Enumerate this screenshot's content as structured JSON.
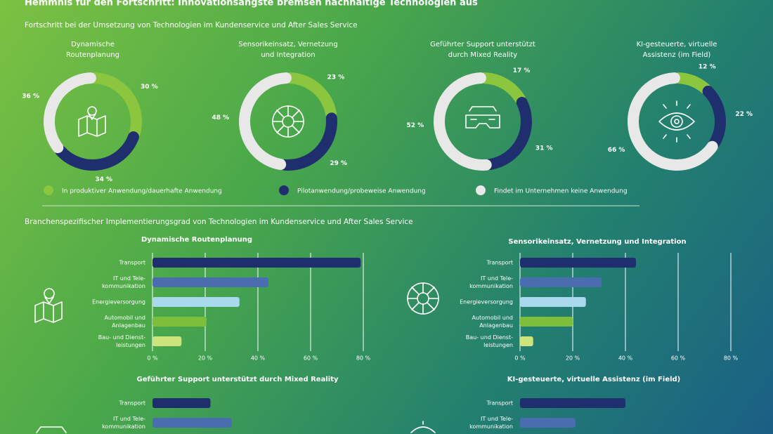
{
  "title": "Hemmnis für den Fortschritt: Innovationsängste bremsen nachhaltige Technologien aus",
  "section1_title": "Fortschritt bei der Umsetzung von Technologien im Kundenservice und After Sales Service",
  "legend": {
    "labels": [
      "In produktiver Anwendung/dauerhafte Anwendung",
      "Pilotanwendung/probeweise Anwendung",
      "Findet im Unternehmen keine Anwendung"
    ],
    "colors": [
      "#8cc63f",
      "#1f2f6e",
      "#e8e8e8"
    ]
  },
  "section2_title": "Branchenspezifischer Implementierungsgrad von Technologien im Kundenservice und After Sales Service",
  "chart_data": [
    {
      "type": "pie",
      "title": [
        "Dynamische",
        "Routenplanung"
      ],
      "values": [
        30,
        34,
        36
      ],
      "value_labels": [
        "30 %",
        "34 %",
        "36 %"
      ]
    },
    {
      "type": "pie",
      "title": [
        "Sensorikeinsatz, Vernetzung",
        "und Integration"
      ],
      "values": [
        23,
        29,
        48
      ],
      "value_labels": [
        "23 %",
        "29 %",
        "48 %"
      ]
    },
    {
      "type": "pie",
      "title": [
        "Geführter Support unterstützt",
        "durch Mixed Reality"
      ],
      "values": [
        17,
        31,
        52
      ],
      "value_labels": [
        "17 %",
        "31 %",
        "52 %"
      ]
    },
    {
      "type": "pie",
      "title": [
        "KI-gesteuerte, virtuelle",
        "Assistenz (im Field)"
      ],
      "values": [
        12,
        22,
        66
      ],
      "value_labels": [
        "12 %",
        "22 %",
        "66 %"
      ]
    },
    {
      "type": "bar",
      "orientation": "horizontal",
      "title": "Dynamische Routenplanung",
      "categories": [
        [
          "Transport"
        ],
        [
          "IT und Tele-",
          "kommunikation"
        ],
        [
          "Energieversorgung"
        ],
        [
          "Automobil und",
          "Anlagenbau"
        ],
        [
          "Bau- und Dienst-",
          "leistungen"
        ]
      ],
      "values": [
        79,
        44,
        33,
        20.5,
        11
      ],
      "colors": [
        "#1f2f6e",
        "#4a6db0",
        "#a9d9ec",
        "#7dbf3a",
        "#cde37c"
      ],
      "xlim": [
        0,
        80
      ],
      "xticks": [
        {
          "value": 0,
          "label": "0 %"
        },
        {
          "value": 20,
          "label": "20 %"
        },
        {
          "value": 40,
          "label": "40 %"
        },
        {
          "value": 60,
          "label": "60 %"
        },
        {
          "value": 80,
          "label": "80 %"
        }
      ],
      "grid": true
    },
    {
      "type": "bar",
      "orientation": "horizontal",
      "title": "Sensorikeinsatz, Vernetzung und Integration",
      "categories": [
        [
          "Transport"
        ],
        [
          "IT und Tele-",
          "kommunikation"
        ],
        [
          "Energieversorgung"
        ],
        [
          "Automobil und",
          "Anlagenbau"
        ],
        [
          "Bau- und Dienst-",
          "leistungen"
        ]
      ],
      "values": [
        44,
        31,
        25,
        20,
        5
      ],
      "colors": [
        "#1f2f6e",
        "#4a6db0",
        "#a9d9ec",
        "#7dbf3a",
        "#cde37c"
      ],
      "xlim": [
        0,
        80
      ],
      "xticks": [
        {
          "value": 0,
          "label": "0 %"
        },
        {
          "value": 20,
          "label": "20 %"
        },
        {
          "value": 40,
          "label": "40 %"
        },
        {
          "value": 60,
          "label": "60 %"
        },
        {
          "value": 80,
          "label": "80 %"
        }
      ],
      "grid": true
    },
    {
      "type": "bar",
      "orientation": "horizontal",
      "title": "Geführter Support unterstützt durch Mixed Reality",
      "categories": [
        [
          "Transport"
        ],
        [
          "IT und Tele-",
          "kommunikation"
        ]
      ],
      "values": [
        22,
        30
      ],
      "colors": [
        "#1f2f6e",
        "#4a6db0"
      ],
      "xlim": [
        0,
        80
      ]
    },
    {
      "type": "bar",
      "orientation": "horizontal",
      "title": "KI-gesteuerte, virtuelle Assistenz (im Field)",
      "categories": [
        [
          "Transport"
        ],
        [
          "IT und Tele-",
          "kommunikation"
        ]
      ],
      "values": [
        40,
        21
      ],
      "colors": [
        "#1f2f6e",
        "#4a6db0"
      ],
      "xlim": [
        0,
        80
      ]
    }
  ]
}
